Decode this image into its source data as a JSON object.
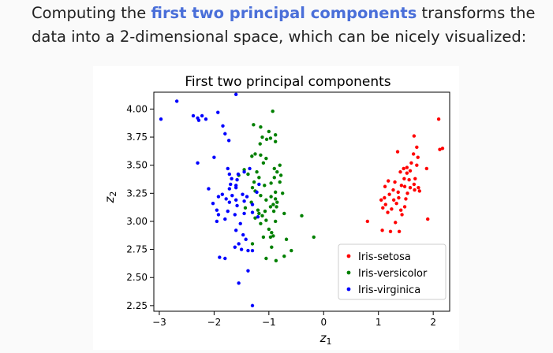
{
  "intro": {
    "before": "Computing the",
    "highlight": "first two principal components",
    "after": "transforms the data into a 2-dimensional space, which can be nicely visualized:",
    "highlight_color": "#4a6fd9"
  },
  "chart_data": {
    "type": "scatter",
    "title": "First two principal components",
    "xlabel": "z1",
    "ylabel": "z2",
    "xlim": [
      -3.1,
      2.3
    ],
    "ylim": [
      2.2,
      4.15
    ],
    "xticks": [
      -3,
      -2,
      -1,
      0,
      1,
      2
    ],
    "xtick_labels": [
      "−3",
      "−2",
      "−1",
      "0",
      "1",
      "2"
    ],
    "yticks": [
      2.25,
      2.5,
      2.75,
      3.0,
      3.25,
      3.5,
      3.75,
      4.0
    ],
    "ytick_labels": [
      "2.25",
      "2.50",
      "2.75",
      "3.00",
      "3.25",
      "3.50",
      "3.75",
      "4.00"
    ],
    "grid": false,
    "legend_position": "bottom-right",
    "series": [
      {
        "name": "Iris-setosa",
        "color": "#ff0000",
        "points": [
          [
            2.1,
            3.91
          ],
          [
            2.12,
            3.64
          ],
          [
            2.17,
            3.65
          ],
          [
            1.65,
            3.76
          ],
          [
            1.7,
            3.66
          ],
          [
            1.64,
            3.6
          ],
          [
            1.35,
            3.62
          ],
          [
            1.72,
            3.57
          ],
          [
            1.6,
            3.52
          ],
          [
            1.7,
            3.5
          ],
          [
            1.52,
            3.48
          ],
          [
            1.46,
            3.47
          ],
          [
            1.58,
            3.45
          ],
          [
            1.88,
            3.47
          ],
          [
            1.4,
            3.44
          ],
          [
            1.52,
            3.43
          ],
          [
            1.67,
            3.38
          ],
          [
            1.47,
            3.38
          ],
          [
            1.56,
            3.37
          ],
          [
            1.3,
            3.35
          ],
          [
            1.18,
            3.36
          ],
          [
            1.65,
            3.33
          ],
          [
            1.42,
            3.32
          ],
          [
            1.48,
            3.31
          ],
          [
            1.58,
            3.3
          ],
          [
            1.73,
            3.3
          ],
          [
            1.12,
            3.31
          ],
          [
            1.27,
            3.28
          ],
          [
            1.66,
            3.28
          ],
          [
            1.36,
            3.26
          ],
          [
            1.53,
            3.25
          ],
          [
            1.2,
            3.24
          ],
          [
            1.75,
            3.27
          ],
          [
            1.11,
            3.21
          ],
          [
            1.37,
            3.21
          ],
          [
            1.5,
            3.2
          ],
          [
            1.28,
            3.19
          ],
          [
            1.05,
            3.19
          ],
          [
            1.33,
            3.16
          ],
          [
            1.13,
            3.15
          ],
          [
            1.48,
            3.13
          ],
          [
            1.08,
            3.12
          ],
          [
            1.24,
            3.11
          ],
          [
            1.41,
            3.1
          ],
          [
            1.17,
            3.08
          ],
          [
            1.43,
            3.06
          ],
          [
            1.9,
            3.02
          ],
          [
            0.8,
            3.0
          ],
          [
            1.31,
            2.99
          ],
          [
            1.07,
            2.92
          ],
          [
            1.22,
            2.91
          ],
          [
            1.38,
            2.91
          ]
        ]
      },
      {
        "name": "Iris-versicolor",
        "color": "#008000",
        "points": [
          [
            -0.93,
            3.98
          ],
          [
            -1.28,
            3.86
          ],
          [
            -1.15,
            3.84
          ],
          [
            -1.0,
            3.8
          ],
          [
            -0.88,
            3.77
          ],
          [
            -1.12,
            3.75
          ],
          [
            -0.97,
            3.74
          ],
          [
            -1.04,
            3.73
          ],
          [
            -0.88,
            3.71
          ],
          [
            -1.16,
            3.69
          ],
          [
            -1.25,
            3.6
          ],
          [
            -1.15,
            3.59
          ],
          [
            -1.31,
            3.58
          ],
          [
            -1.05,
            3.56
          ],
          [
            -1.1,
            3.52
          ],
          [
            -0.8,
            3.5
          ],
          [
            -1.45,
            3.46
          ],
          [
            -1.22,
            3.44
          ],
          [
            -1.38,
            3.42
          ],
          [
            -0.9,
            3.47
          ],
          [
            -0.85,
            3.44
          ],
          [
            -0.78,
            3.41
          ],
          [
            -1.55,
            3.41
          ],
          [
            -1.18,
            3.39
          ],
          [
            -0.9,
            3.39
          ],
          [
            -1.27,
            3.35
          ],
          [
            -0.96,
            3.34
          ],
          [
            -0.8,
            3.35
          ],
          [
            -1.08,
            3.32
          ],
          [
            -1.3,
            3.3
          ],
          [
            -1.25,
            3.27
          ],
          [
            -0.88,
            3.26
          ],
          [
            -0.75,
            3.25
          ],
          [
            -1.15,
            3.23
          ],
          [
            -0.96,
            3.22
          ],
          [
            -0.88,
            3.2
          ],
          [
            -1.05,
            3.19
          ],
          [
            -1.32,
            3.17
          ],
          [
            -0.85,
            3.17
          ],
          [
            -0.92,
            3.15
          ],
          [
            -0.97,
            3.13
          ],
          [
            -0.86,
            3.13
          ],
          [
            -1.2,
            3.1
          ],
          [
            -1.43,
            3.12
          ],
          [
            -1.07,
            3.09
          ],
          [
            -0.91,
            3.09
          ],
          [
            -1.18,
            3.07
          ],
          [
            -1.12,
            3.05
          ],
          [
            -0.72,
            3.07
          ],
          [
            -0.4,
            3.05
          ],
          [
            -1.25,
            3.03
          ],
          [
            -1.05,
            3.01
          ],
          [
            -0.88,
            3.0
          ],
          [
            -1.15,
            2.98
          ],
          [
            -1.0,
            2.93
          ],
          [
            -0.95,
            2.9
          ],
          [
            -0.92,
            2.87
          ],
          [
            -1.1,
            2.86
          ],
          [
            -0.97,
            2.86
          ],
          [
            -0.18,
            2.86
          ],
          [
            -0.68,
            2.84
          ],
          [
            -1.3,
            2.8
          ],
          [
            -0.95,
            2.77
          ],
          [
            -0.59,
            2.74
          ],
          [
            -0.72,
            2.69
          ],
          [
            -1.05,
            2.67
          ],
          [
            -0.87,
            2.65
          ]
        ]
      },
      {
        "name": "Iris-virginica",
        "color": "#0000ff",
        "points": [
          [
            -1.6,
            4.13
          ],
          [
            -2.68,
            4.07
          ],
          [
            -1.93,
            3.97
          ],
          [
            -2.97,
            3.91
          ],
          [
            -2.38,
            3.94
          ],
          [
            -2.22,
            3.94
          ],
          [
            -2.3,
            3.92
          ],
          [
            -2.15,
            3.91
          ],
          [
            -2.28,
            3.9
          ],
          [
            -1.84,
            3.85
          ],
          [
            -1.8,
            3.78
          ],
          [
            -1.73,
            3.72
          ],
          [
            -2.0,
            3.57
          ],
          [
            -2.3,
            3.52
          ],
          [
            -1.75,
            3.47
          ],
          [
            -1.35,
            3.47
          ],
          [
            -1.45,
            3.44
          ],
          [
            -1.72,
            3.42
          ],
          [
            -1.56,
            3.42
          ],
          [
            -1.68,
            3.38
          ],
          [
            -1.58,
            3.37
          ],
          [
            -1.7,
            3.33
          ],
          [
            -1.6,
            3.32
          ],
          [
            -1.18,
            3.33
          ],
          [
            -1.6,
            3.3
          ],
          [
            -1.72,
            3.29
          ],
          [
            -2.1,
            3.29
          ],
          [
            -1.22,
            3.26
          ],
          [
            -1.85,
            3.24
          ],
          [
            -1.67,
            3.23
          ],
          [
            -1.48,
            3.24
          ],
          [
            -1.92,
            3.22
          ],
          [
            -1.4,
            3.22
          ],
          [
            -1.78,
            3.2
          ],
          [
            -1.6,
            3.19
          ],
          [
            -1.45,
            3.18
          ],
          [
            -1.72,
            3.17
          ],
          [
            -2.02,
            3.16
          ],
          [
            -1.3,
            3.15
          ],
          [
            -1.58,
            3.14
          ],
          [
            -1.95,
            3.1
          ],
          [
            -1.75,
            3.09
          ],
          [
            -1.3,
            3.08
          ],
          [
            -1.45,
            3.07
          ],
          [
            -1.62,
            3.06
          ],
          [
            -1.92,
            3.06
          ],
          [
            -1.2,
            3.04
          ],
          [
            -1.8,
            3.02
          ],
          [
            -1.95,
            3.0
          ],
          [
            -1.52,
            2.98
          ],
          [
            -1.6,
            2.92
          ],
          [
            -1.47,
            2.88
          ],
          [
            -1.42,
            2.84
          ],
          [
            -1.55,
            2.8
          ],
          [
            -1.62,
            2.77
          ],
          [
            -1.5,
            2.75
          ],
          [
            -1.3,
            2.74
          ],
          [
            -1.38,
            2.74
          ],
          [
            -1.9,
            2.68
          ],
          [
            -1.8,
            2.67
          ],
          [
            -1.38,
            2.56
          ],
          [
            -1.55,
            2.45
          ],
          [
            -1.3,
            2.25
          ]
        ]
      }
    ]
  }
}
